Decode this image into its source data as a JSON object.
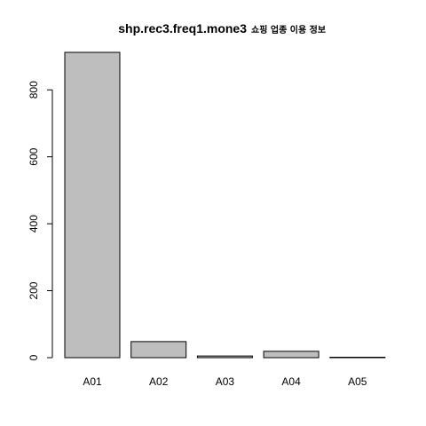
{
  "chart_data": {
    "type": "bar",
    "title": "shp.rec3.freq1.mone3",
    "subtitle": "쇼핑 업종 이용 정보",
    "xlabel": "",
    "ylabel": "",
    "categories": [
      "A01",
      "A02",
      "A03",
      "A04",
      "A05"
    ],
    "values": [
      912,
      48,
      5,
      19,
      1
    ],
    "ylim": [
      0,
      912
    ],
    "yticks": [
      0,
      200,
      400,
      600,
      800
    ],
    "grid": false,
    "legend": "none",
    "bar_color": "#bebebe",
    "border_color": "#000000"
  }
}
